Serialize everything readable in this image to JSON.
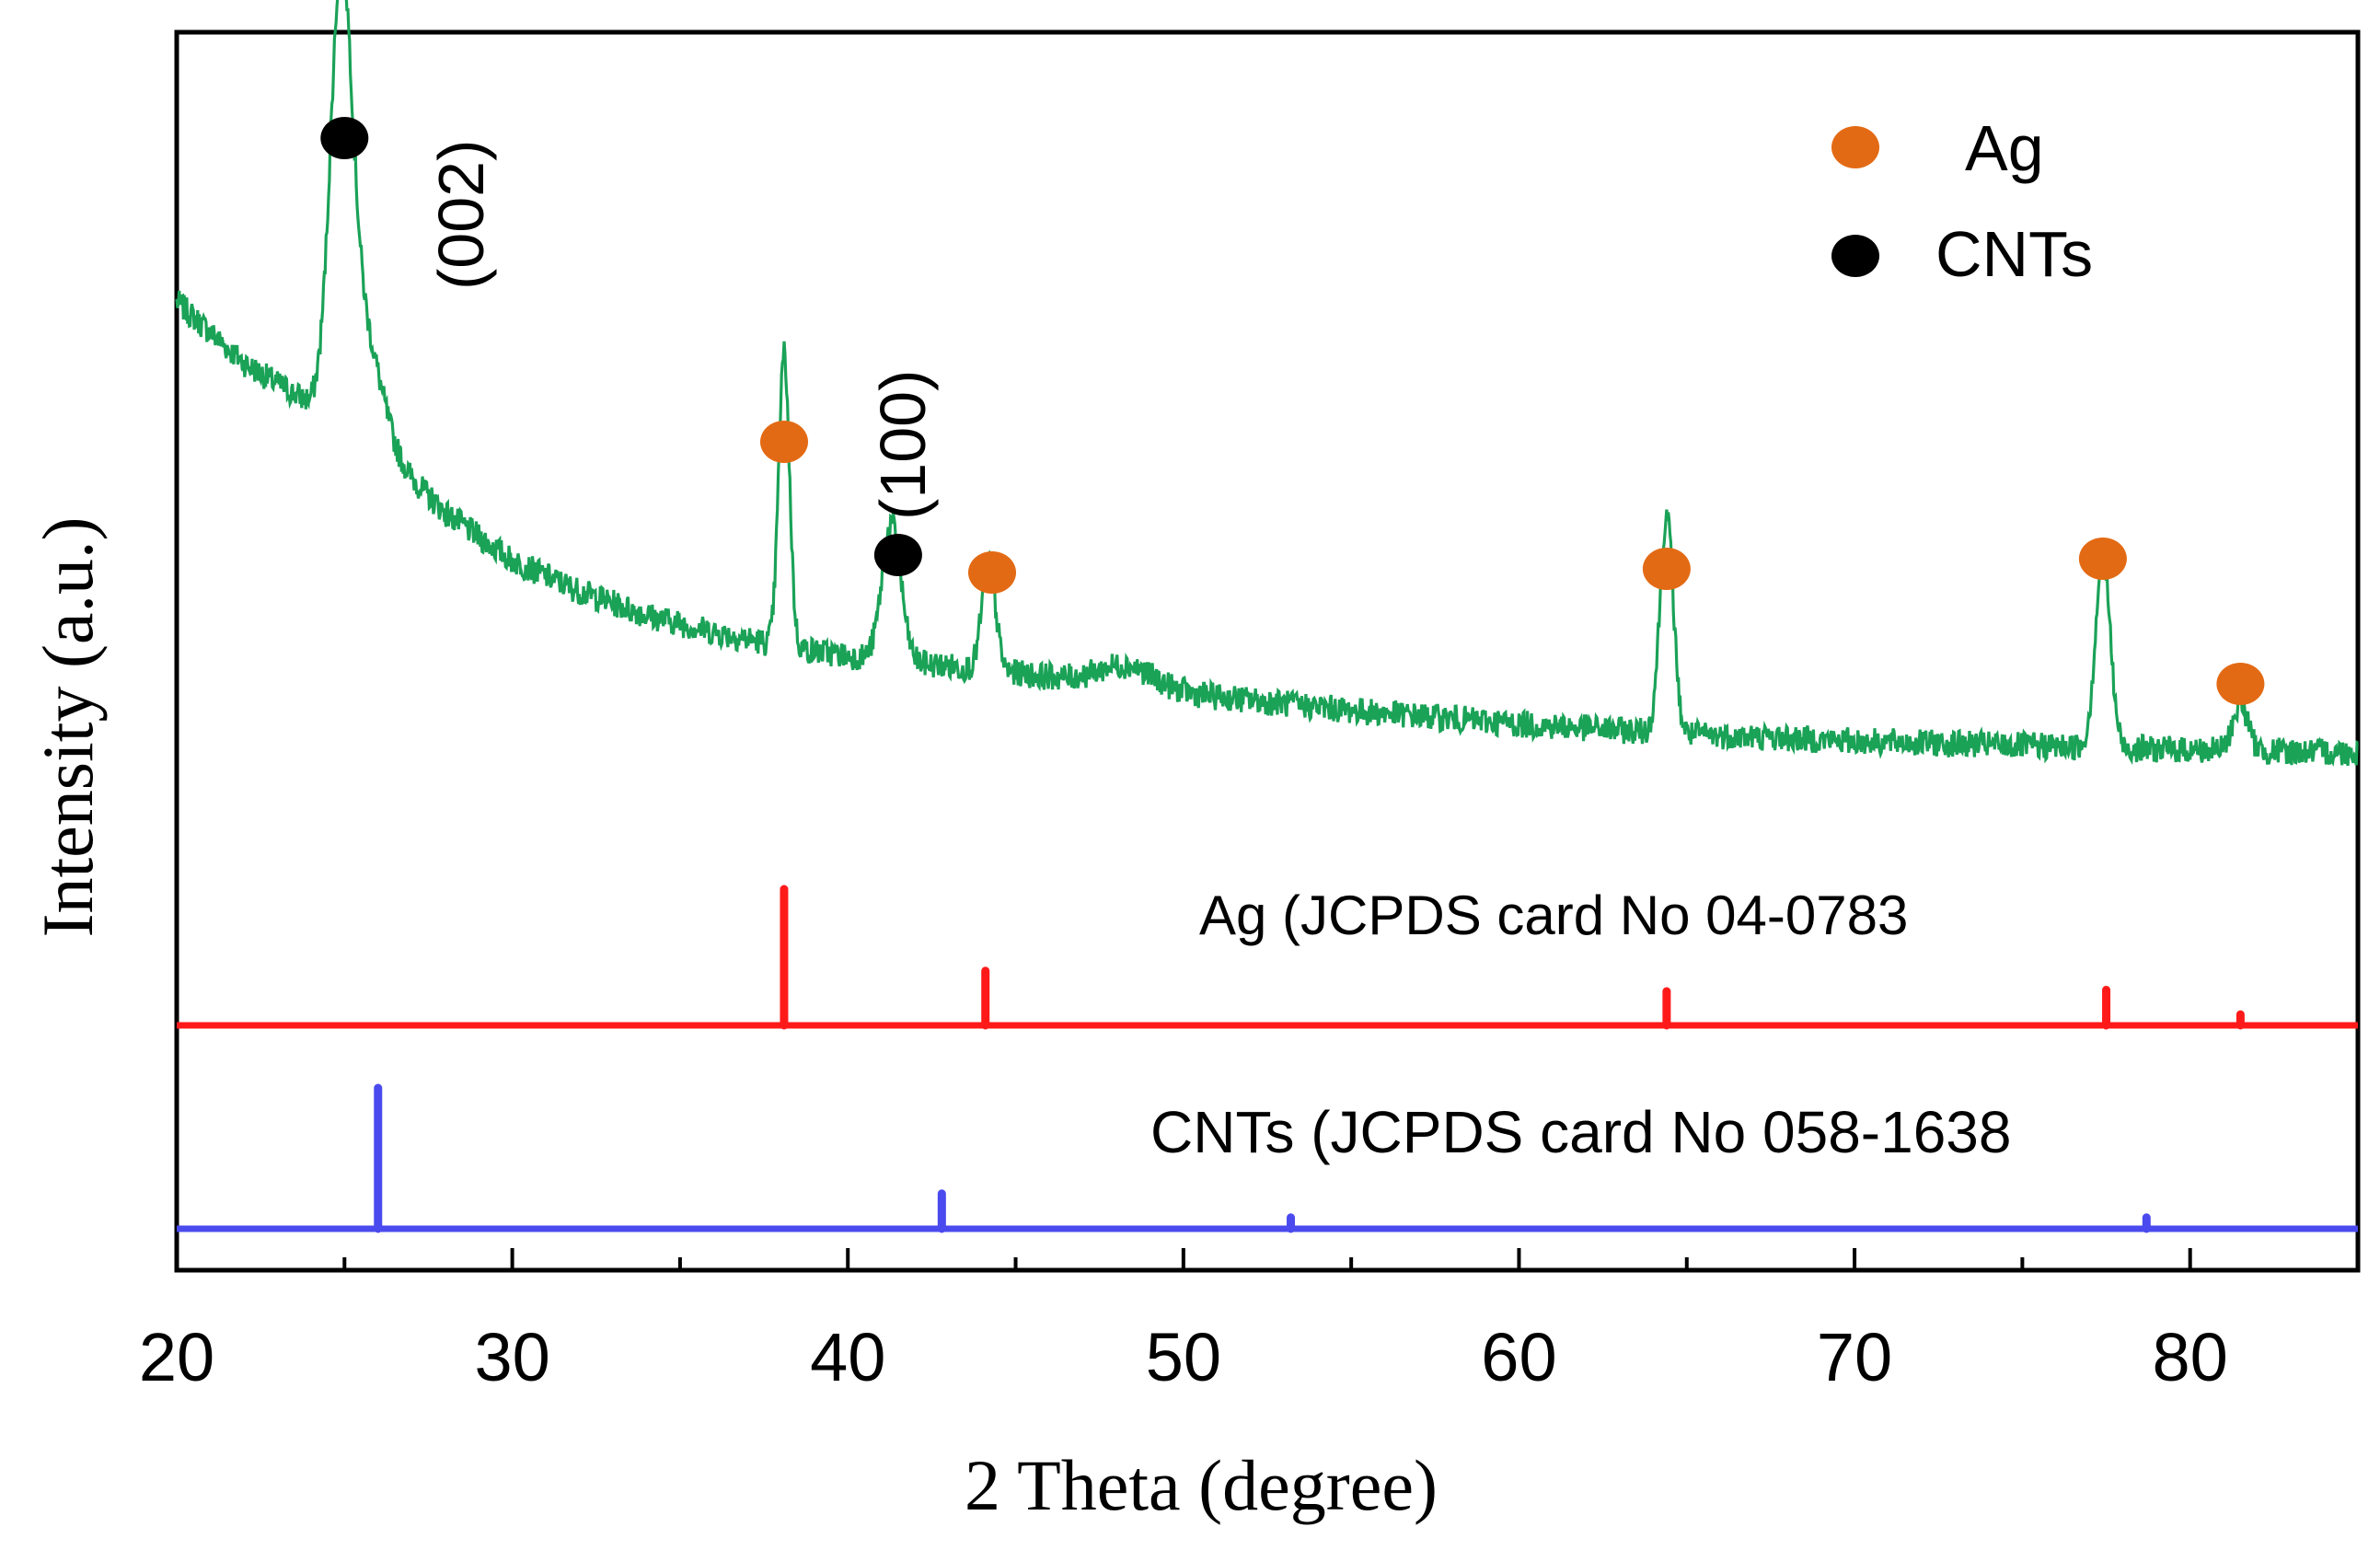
{
  "chart_data": {
    "type": "line",
    "xlabel": "2 Theta (degree)",
    "ylabel": "Intensity (a.u.)",
    "xlim": [
      20,
      85
    ],
    "xticks": [
      20,
      30,
      40,
      50,
      60,
      70,
      80
    ],
    "xtick_labels": [
      "20",
      "30",
      "40",
      "50",
      "60",
      "70",
      "80"
    ],
    "minor_xticks": [
      25,
      35,
      45,
      55,
      65,
      75,
      85
    ],
    "yticks_shown": false,
    "grid": false,
    "colors": {
      "measured": "#1aa257",
      "ag_reference": "#ff1a1a",
      "cnt_reference": "#4a4aee",
      "ag_marker": "#e36a14",
      "cnt_marker": "#000000"
    },
    "series": [
      {
        "key": "measured",
        "background": [
          [
            20,
            0.78
          ],
          [
            22,
            0.69
          ],
          [
            24,
            0.63
          ],
          [
            25.5,
            0.6
          ],
          [
            27,
            0.52
          ],
          [
            28,
            0.47
          ],
          [
            30,
            0.4
          ],
          [
            32,
            0.355
          ],
          [
            34,
            0.32
          ],
          [
            36,
            0.295
          ],
          [
            38,
            0.275
          ],
          [
            40,
            0.26
          ],
          [
            42,
            0.25
          ],
          [
            45,
            0.235
          ],
          [
            48,
            0.218
          ],
          [
            50,
            0.205
          ],
          [
            55,
            0.18
          ],
          [
            60,
            0.16
          ],
          [
            65,
            0.145
          ],
          [
            70,
            0.135
          ],
          [
            75,
            0.128
          ],
          [
            80,
            0.122
          ],
          [
            85,
            0.118
          ]
        ],
        "peaks": [
          {
            "x": 24.9,
            "height": 0.62,
            "width": 0.32
          },
          {
            "x": 25.6,
            "height": 0.14,
            "width": 0.5
          },
          {
            "x": 38.1,
            "height": 0.43,
            "width": 0.16
          },
          {
            "x": 41.3,
            "height": 0.2,
            "width": 0.28
          },
          {
            "x": 44.2,
            "height": 0.16,
            "width": 0.2
          },
          {
            "x": 48.3,
            "height": 0.03,
            "width": 0.8
          },
          {
            "x": 64.4,
            "height": 0.32,
            "width": 0.2
          },
          {
            "x": 77.4,
            "height": 0.28,
            "width": 0.22
          },
          {
            "x": 81.5,
            "height": 0.07,
            "width": 0.22
          }
        ],
        "noise": 0.04
      },
      {
        "key": "ag_reference",
        "name": "Ag (JCPDS card No 04-0783",
        "sticks": [
          {
            "x": 38.1,
            "intensity": 100
          },
          {
            "x": 44.1,
            "intensity": 40
          },
          {
            "x": 64.4,
            "intensity": 25
          },
          {
            "x": 77.5,
            "intensity": 26
          },
          {
            "x": 81.5,
            "intensity": 8
          }
        ]
      },
      {
        "key": "cnt_reference",
        "name": "CNTs (JCPDS card No 058-1638",
        "sticks": [
          {
            "x": 26.0,
            "intensity": 100
          },
          {
            "x": 42.8,
            "intensity": 25
          },
          {
            "x": 53.2,
            "intensity": 8
          },
          {
            "x": 78.7,
            "intensity": 8
          }
        ]
      }
    ],
    "peak_markers": [
      {
        "phase": "CNTs",
        "x": 25.0,
        "label": "(002)"
      },
      {
        "phase": "Ag",
        "x": 38.1
      },
      {
        "phase": "CNTs",
        "x": 41.5,
        "label": "(100)"
      },
      {
        "phase": "Ag",
        "x": 44.3
      },
      {
        "phase": "Ag",
        "x": 64.4
      },
      {
        "phase": "Ag",
        "x": 77.4
      },
      {
        "phase": "Ag",
        "x": 81.5
      }
    ],
    "legend": {
      "position": "top-right",
      "entries": [
        {
          "label": "Ag",
          "color": "#e36a14"
        },
        {
          "label": "CNTs",
          "color": "#000000"
        }
      ]
    }
  }
}
